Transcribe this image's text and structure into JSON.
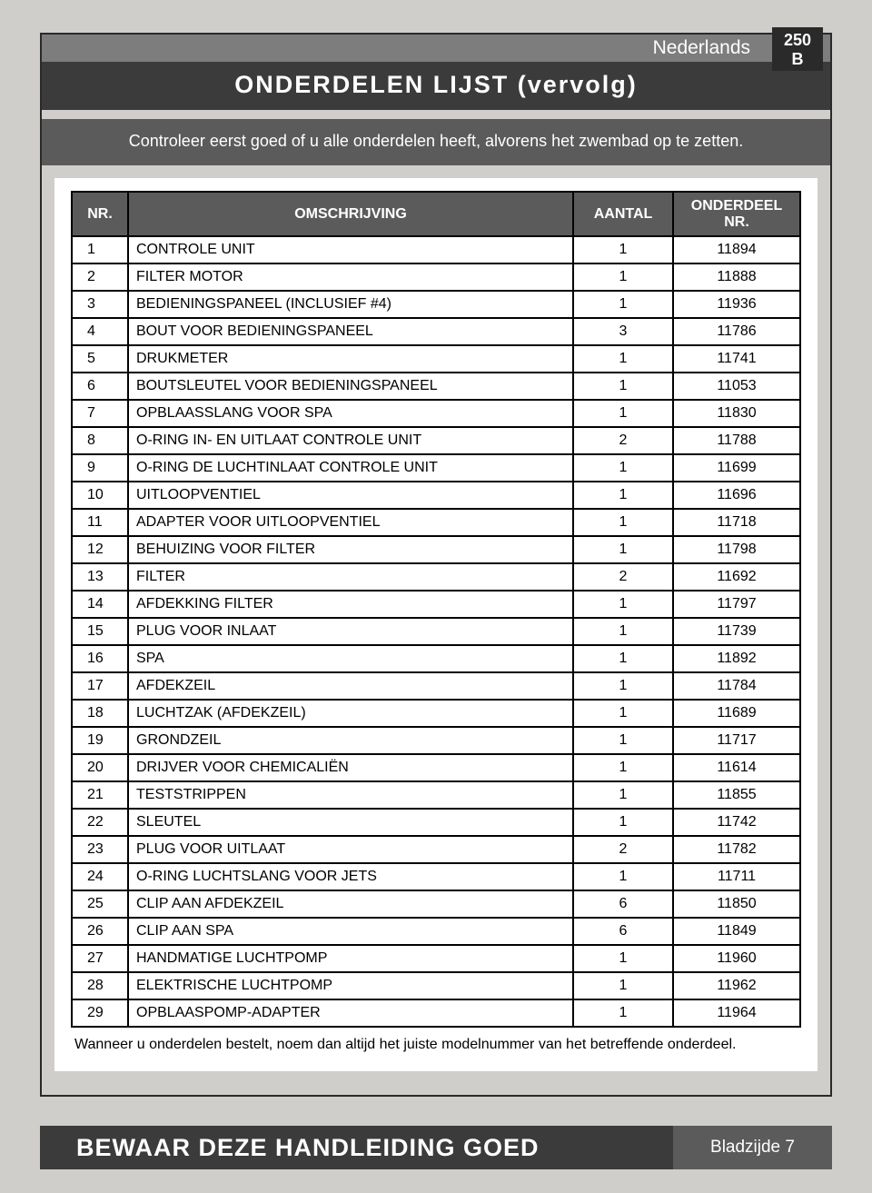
{
  "header": {
    "language": "Nederlands",
    "badge_line1": "250",
    "badge_line2": "B",
    "title": "ONDERDELEN LIJST (vervolg)",
    "subtitle": "Controleer eerst goed of u alle onderdelen heeft, alvorens het zwembad op te zetten."
  },
  "table": {
    "columns": {
      "nr": "NR.",
      "desc": "OMSCHRIJVING",
      "qty": "AANTAL",
      "partno": "ONDERDEEL NR."
    },
    "rows": [
      {
        "nr": "1",
        "desc": "CONTROLE UNIT",
        "qty": "1",
        "part": "11894"
      },
      {
        "nr": "2",
        "desc": "FILTER MOTOR",
        "qty": "1",
        "part": "11888"
      },
      {
        "nr": "3",
        "desc": "BEDIENINGSPANEEL (INCLUSIEF #4)",
        "qty": "1",
        "part": "11936"
      },
      {
        "nr": "4",
        "desc": "BOUT VOOR BEDIENINGSPANEEL",
        "qty": "3",
        "part": "11786"
      },
      {
        "nr": "5",
        "desc": "DRUKMETER",
        "qty": "1",
        "part": "11741"
      },
      {
        "nr": "6",
        "desc": "BOUTSLEUTEL VOOR BEDIENINGSPANEEL",
        "qty": "1",
        "part": "11053"
      },
      {
        "nr": "7",
        "desc": "OPBLAASSLANG VOOR SPA",
        "qty": "1",
        "part": "11830"
      },
      {
        "nr": "8",
        "desc": "O-RING IN- EN UITLAAT CONTROLE UNIT",
        "qty": "2",
        "part": "11788"
      },
      {
        "nr": "9",
        "desc": "O-RING DE LUCHTINLAAT CONTROLE UNIT",
        "qty": "1",
        "part": "11699"
      },
      {
        "nr": "10",
        "desc": "UITLOOPVENTIEL",
        "qty": "1",
        "part": "11696"
      },
      {
        "nr": "11",
        "desc": "ADAPTER VOOR UITLOOPVENTIEL",
        "qty": "1",
        "part": "11718"
      },
      {
        "nr": "12",
        "desc": "BEHUIZING VOOR FILTER",
        "qty": "1",
        "part": "11798"
      },
      {
        "nr": "13",
        "desc": "FILTER",
        "qty": "2",
        "part": "11692"
      },
      {
        "nr": "14",
        "desc": "AFDEKKING FILTER",
        "qty": "1",
        "part": "11797"
      },
      {
        "nr": "15",
        "desc": "PLUG VOOR INLAAT",
        "qty": "1",
        "part": "11739"
      },
      {
        "nr": "16",
        "desc": "SPA",
        "qty": "1",
        "part": "11892"
      },
      {
        "nr": "17",
        "desc": "AFDEKZEIL",
        "qty": "1",
        "part": "11784"
      },
      {
        "nr": "18",
        "desc": "LUCHTZAK (AFDEKZEIL)",
        "qty": "1",
        "part": "11689"
      },
      {
        "nr": "19",
        "desc": "GRONDZEIL",
        "qty": "1",
        "part": "11717"
      },
      {
        "nr": "20",
        "desc": "DRIJVER VOOR CHEMICALIËN",
        "qty": "1",
        "part": "11614"
      },
      {
        "nr": "21",
        "desc": "TESTSTRIPPEN",
        "qty": "1",
        "part": "11855"
      },
      {
        "nr": "22",
        "desc": "SLEUTEL",
        "qty": "1",
        "part": "11742"
      },
      {
        "nr": "23",
        "desc": "PLUG VOOR UITLAAT",
        "qty": "2",
        "part": "11782"
      },
      {
        "nr": "24",
        "desc": "O-RING LUCHTSLANG VOOR JETS",
        "qty": "1",
        "part": "11711"
      },
      {
        "nr": "25",
        "desc": "CLIP AAN AFDEKZEIL",
        "qty": "6",
        "part": "11850"
      },
      {
        "nr": "26",
        "desc": "CLIP AAN SPA",
        "qty": "6",
        "part": "11849"
      },
      {
        "nr": "27",
        "desc": "HANDMATIGE LUCHTPOMP",
        "qty": "1",
        "part": "11960"
      },
      {
        "nr": "28",
        "desc": "ELEKTRISCHE LUCHTPOMP",
        "qty": "1",
        "part": "11962"
      },
      {
        "nr": "29",
        "desc": "OPBLAASPOMP-ADAPTER",
        "qty": "1",
        "part": "11964"
      }
    ],
    "footnote": "Wanneer u onderdelen bestelt, noem dan altijd het juiste modelnummer van het betreffende onderdeel."
  },
  "footer": {
    "main": "BEWAAR DEZE HANDLEIDING GOED",
    "page": "Bladzijde 7"
  }
}
